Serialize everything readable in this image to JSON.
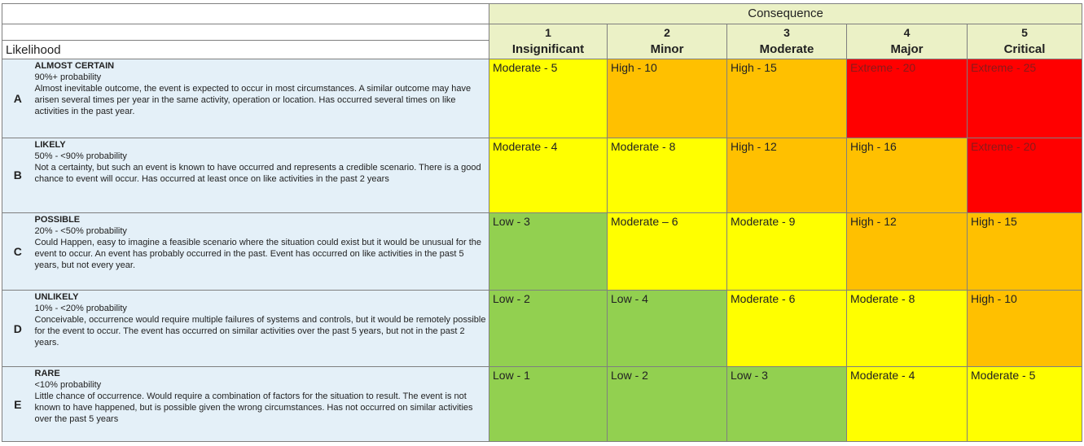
{
  "header": {
    "consequence_title": "Consequence",
    "likelihood_label": "Likelihood"
  },
  "consequences": [
    {
      "number": "1",
      "name": "Insignificant"
    },
    {
      "number": "2",
      "name": "Minor"
    },
    {
      "number": "3",
      "name": "Moderate"
    },
    {
      "number": "4",
      "name": "Major"
    },
    {
      "number": "5",
      "name": "Critical"
    }
  ],
  "rows": [
    {
      "letter": "A",
      "title": "ALMOST CERTAIN",
      "probability": "90%+ probability",
      "description": "Almost inevitable outcome, the event is expected to occur in most circumstances. A similar outcome may have arisen several times per year in the same activity, operation or location. Has occurred several times on like activities in the past year.",
      "cells": [
        "Moderate - 5",
        "High - 10",
        "High - 15",
        "Extreme - 20",
        "Extreme - 25"
      ]
    },
    {
      "letter": "B",
      "title": "LIKELY",
      "probability": "50% - <90% probability",
      "description": "Not a certainty, but such an event is known to have occurred and represents a credible scenario. There is a good chance to event will occur. Has occurred at least once on like activities in the past 2 years",
      "cells": [
        "Moderate - 4",
        "Moderate - 8",
        "High - 12",
        "High - 16",
        "Extreme - 20"
      ]
    },
    {
      "letter": "C",
      "title": "POSSIBLE",
      "probability": "20% - <50% probability",
      "description": "Could Happen, easy to imagine a feasible scenario where the situation could exist but it would be unusual for the event to occur. An event has probably occurred in the past. Event has occurred on like activities in the past 5 years, but not every year.",
      "cells": [
        "Low - 3",
        "Moderate – 6",
        "Moderate - 9",
        "High - 12",
        "High - 15"
      ]
    },
    {
      "letter": "D",
      "title": "UNLIKELY",
      "probability": "10% - <20% probability",
      "description": "Conceivable, occurrence would require multiple failures of systems and controls, but it would be remotely possible for the event to occur. The event has occurred on similar activities over the past 5 years, but not in the past 2 years.",
      "cells": [
        "Low - 2",
        "Low - 4",
        "Moderate - 6",
        "Moderate - 8",
        "High - 10"
      ]
    },
    {
      "letter": "E",
      "title": "RARE",
      "probability": "<10% probability",
      "description": "Little chance of occurrence. Would require a combination of factors for the situation to result. The event is not known to have happened, but is possible given the wrong circumstances. Has not occurred on similar activities over the past 5 years",
      "cells": [
        "Low - 1",
        "Low - 2",
        "Low - 3",
        "Moderate - 4",
        "Moderate - 5"
      ]
    }
  ],
  "colors": {
    "low": "#92d050",
    "moderate": "#ffff00",
    "high": "#ffc000",
    "extreme": "#ff0000"
  }
}
